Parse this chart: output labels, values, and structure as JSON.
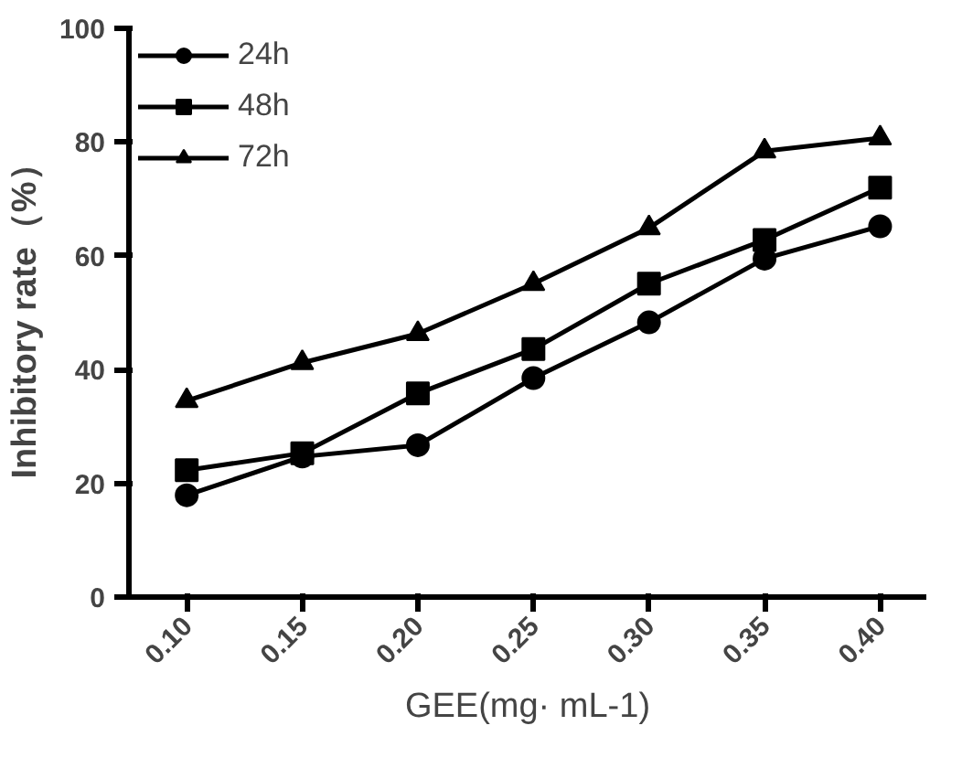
{
  "chart_data": {
    "type": "line",
    "xlabel": "GEE(mg· mL-1)",
    "ylabel": "Inhibitory rate（%）",
    "categories": [
      "0.10",
      "0.15",
      "0.20",
      "0.25",
      "0.30",
      "0.35",
      "0.40"
    ],
    "series": [
      {
        "name": "24h",
        "color": "#000000",
        "marker": "circle",
        "values": [
          17.9,
          24.7,
          26.7,
          38.5,
          48.3,
          59.5,
          65.2
        ]
      },
      {
        "name": "48h",
        "color": "#000000",
        "marker": "square",
        "values": [
          22.3,
          25.3,
          35.8,
          43.6,
          55.1,
          62.8,
          72.0
        ]
      },
      {
        "name": "72h",
        "color": "#000000",
        "marker": "triangle",
        "values": [
          34.5,
          41.2,
          46.3,
          55.1,
          64.9,
          78.4,
          80.7
        ]
      }
    ],
    "ylim": [
      0,
      100
    ],
    "yticks": [
      0,
      20,
      40,
      60,
      80,
      100
    ],
    "grid": false,
    "legend": "top left",
    "line_style": "solid"
  }
}
